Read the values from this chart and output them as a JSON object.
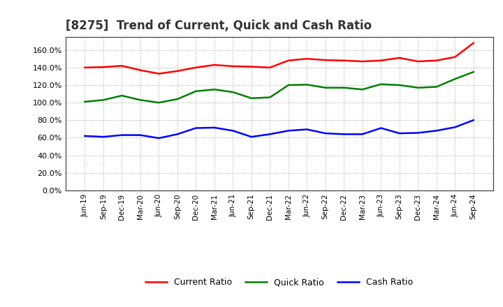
{
  "title": "[8275]  Trend of Current, Quick and Cash Ratio",
  "labels": [
    "Jun-19",
    "Sep-19",
    "Dec-19",
    "Mar-20",
    "Jun-20",
    "Sep-20",
    "Dec-20",
    "Mar-21",
    "Jun-21",
    "Sep-21",
    "Dec-21",
    "Mar-22",
    "Jun-22",
    "Sep-22",
    "Dec-22",
    "Mar-23",
    "Jun-23",
    "Sep-23",
    "Dec-23",
    "Mar-24",
    "Jun-24",
    "Sep-24"
  ],
  "current_ratio": [
    140.0,
    140.5,
    142.0,
    137.0,
    133.0,
    136.0,
    140.0,
    143.0,
    141.5,
    141.0,
    140.0,
    148.0,
    150.0,
    148.5,
    148.0,
    147.0,
    148.0,
    151.0,
    147.0,
    148.0,
    152.0,
    168.0
  ],
  "quick_ratio": [
    101.0,
    103.0,
    108.0,
    103.0,
    100.0,
    104.0,
    113.0,
    115.0,
    112.0,
    105.0,
    106.0,
    120.0,
    120.5,
    117.0,
    117.0,
    115.0,
    121.0,
    120.0,
    117.0,
    118.0,
    127.0,
    135.0
  ],
  "cash_ratio": [
    62.0,
    61.0,
    63.0,
    63.0,
    59.5,
    64.0,
    71.0,
    71.5,
    68.0,
    61.0,
    64.0,
    68.0,
    69.5,
    65.0,
    64.0,
    64.0,
    71.0,
    65.0,
    65.5,
    68.0,
    72.0,
    80.0
  ],
  "current_color": "#ff0000",
  "quick_color": "#008000",
  "cash_color": "#0000ff",
  "ylim": [
    0,
    175
  ],
  "yticks": [
    0,
    20,
    40,
    60,
    80,
    100,
    120,
    140,
    160
  ],
  "background_color": "#ffffff",
  "plot_bg_color": "#ffffff",
  "grid_color": "#aaaaaa",
  "legend_labels": [
    "Current Ratio",
    "Quick Ratio",
    "Cash Ratio"
  ]
}
